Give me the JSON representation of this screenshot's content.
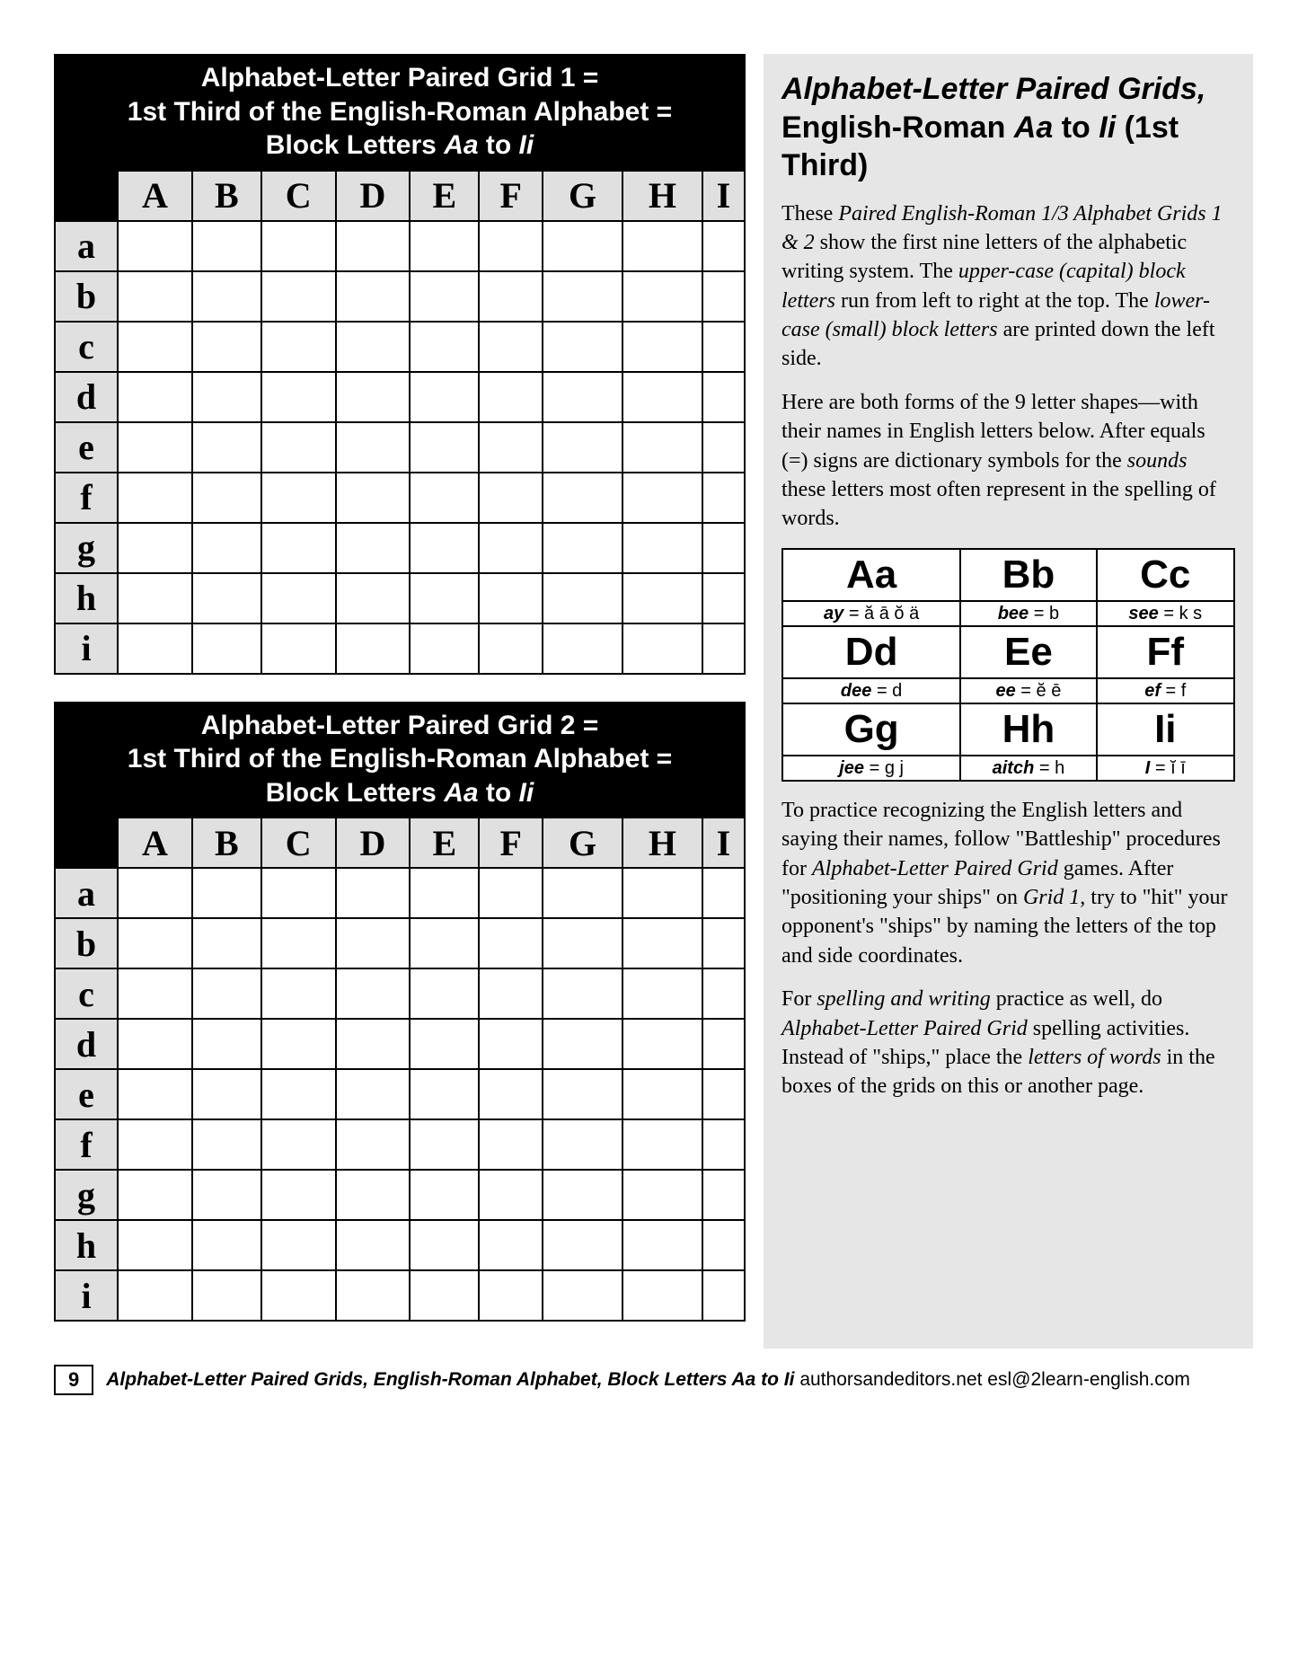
{
  "grid1": {
    "title_l1": "Alphabet-Letter Paired Grid 1 =",
    "title_l2": "1st Third of the English-Roman Alphabet =",
    "title_l3a": "Block Letters ",
    "title_l3b": "Aa",
    "title_l3c": " to ",
    "title_l3d": "Ii",
    "cols": [
      "A",
      "B",
      "C",
      "D",
      "E",
      "F",
      "G",
      "H",
      "I"
    ],
    "rows": [
      "a",
      "b",
      "c",
      "d",
      "e",
      "f",
      "g",
      "h",
      "i"
    ]
  },
  "grid2": {
    "title_l1": "Alphabet-Letter Paired Grid 2 =",
    "title_l2": "1st Third of the English-Roman Alphabet =",
    "title_l3a": "Block Letters ",
    "title_l3b": "Aa",
    "title_l3c": " to ",
    "title_l3d": "Ii",
    "cols": [
      "A",
      "B",
      "C",
      "D",
      "E",
      "F",
      "G",
      "H",
      "I"
    ],
    "rows": [
      "a",
      "b",
      "c",
      "d",
      "e",
      "f",
      "g",
      "h",
      "i"
    ]
  },
  "sidebar": {
    "title_a": "Alphabet-Letter Paired Grids,",
    "title_b": "  English-Roman ",
    "title_c": "Aa",
    "title_d": " to ",
    "title_e": "Ii",
    "title_f": " (1st Third)",
    "p1_a": "These ",
    "p1_b": "Paired English-Roman 1/3 Alphabet Grids 1 & 2",
    "p1_c": " show the first nine letters of the alphabetic writing system. The ",
    "p1_d": "upper-case (capital) block letters",
    "p1_e": " run from left to right at the top. The ",
    "p1_f": "lower-case (small) block letters",
    "p1_g": " are printed down the left side.",
    "p2_a": "Here are both forms of the 9 letter shapes—with their names in English letters below. After equals (=) signs are dictionary symbols for the ",
    "p2_b": "sounds",
    "p2_c": " these letters most often represent in the spelling of words.",
    "p3_a": "To practice recognizing the English letters and saying their names, follow \"Battleship\" procedures for ",
    "p3_b": "Alphabet-Letter Paired Grid",
    "p3_c": " games. After \"positioning your ships\" on ",
    "p3_d": "Grid 1",
    "p3_e": ", try to \"hit\" your opponent's \"ships\" by naming the letters of the top and side coordinates.",
    "p4_a": "For ",
    "p4_b": "spelling and writing",
    "p4_c": " practice as well, do ",
    "p4_d": "Alphabet-Letter Paired Grid",
    "p4_e": " spelling activities. Instead of \"ships,\" place the ",
    "p4_f": "letters of words",
    "p4_g": " in the boxes of the grids on this or another page."
  },
  "letters": {
    "pairs": [
      "Aa",
      "Bb",
      "Cc",
      "Dd",
      "Ee",
      "Ff",
      "Gg",
      "Hh",
      "Ii"
    ],
    "names": [
      "ay",
      "bee",
      "see",
      "dee",
      "ee",
      "ef",
      "jee",
      "aitch",
      "I"
    ],
    "sounds": [
      "ă ā ŏ ä",
      "b",
      "k s",
      "d",
      "ĕ ē",
      "f",
      "g j",
      "h",
      "ĭ ī"
    ]
  },
  "footer": {
    "page": "9",
    "text": "Alphabet-Letter Paired Grids,  English-Roman Alphabet, Block Letters Aa to Ii",
    "site": " authorsandeditors.net  esl@2learn-english.com"
  }
}
